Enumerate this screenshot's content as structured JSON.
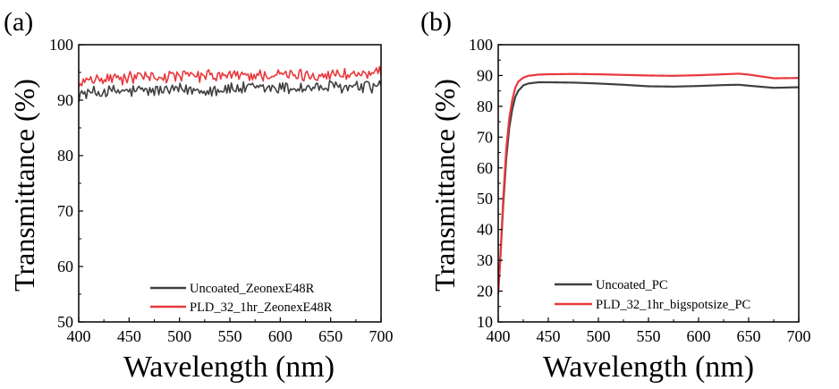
{
  "chart_data": [
    {
      "panel_label": "(a)",
      "type": "line",
      "xlabel": "Wavelength (nm)",
      "ylabel": "Transmittance (%)",
      "xlim": [
        400,
        700
      ],
      "ylim": [
        50,
        100
      ],
      "xticks": [
        400,
        450,
        500,
        550,
        600,
        650,
        700
      ],
      "yticks": [
        50,
        60,
        70,
        80,
        90,
        100
      ],
      "legend_position": "bottom-right",
      "series": [
        {
          "name": "Uncoated_ZeonexE48R",
          "color": "#404040",
          "noise": 1.1,
          "x": [
            400,
            425,
            450,
            475,
            500,
            525,
            550,
            575,
            600,
            625,
            650,
            675,
            700
          ],
          "y": [
            91.0,
            91.5,
            91.6,
            91.7,
            91.8,
            91.9,
            92.0,
            92.1,
            92.2,
            92.2,
            92.3,
            92.3,
            92.5
          ]
        },
        {
          "name": "PLD_32_1hr_ZeonexE48R",
          "color": "#e8383d",
          "noise": 1.0,
          "x": [
            400,
            425,
            450,
            475,
            500,
            525,
            550,
            575,
            600,
            625,
            650,
            675,
            700
          ],
          "y": [
            93.0,
            93.8,
            94.0,
            94.2,
            94.3,
            94.3,
            94.4,
            94.5,
            94.5,
            94.5,
            94.6,
            94.7,
            94.8
          ]
        }
      ]
    },
    {
      "panel_label": "(b)",
      "type": "line",
      "xlabel": "Wavelength (nm)",
      "ylabel": "Transmittance (%)",
      "xlim": [
        400,
        700
      ],
      "ylim": [
        10,
        100
      ],
      "xticks": [
        400,
        450,
        500,
        550,
        600,
        650,
        700
      ],
      "yticks": [
        10,
        20,
        30,
        40,
        50,
        60,
        70,
        80,
        90,
        100
      ],
      "legend_position": "bottom-right",
      "series": [
        {
          "name": "Uncoated_PC",
          "color": "#404040",
          "noise": 0,
          "x": [
            400,
            402,
            405,
            408,
            411,
            414,
            417,
            420,
            425,
            430,
            440,
            450,
            475,
            500,
            525,
            550,
            575,
            600,
            625,
            640,
            650,
            675,
            700
          ],
          "y": [
            21,
            30,
            48,
            63,
            73,
            79,
            83,
            85,
            86.8,
            87.4,
            87.8,
            87.8,
            87.7,
            87.4,
            87.0,
            86.5,
            86.4,
            86.6,
            86.9,
            87.0,
            86.7,
            86.0,
            86.2
          ]
        },
        {
          "name": "PLD_32_1hr_bigspotsize_PC",
          "color": "#e8383d",
          "noise": 0,
          "x": [
            400,
            402,
            405,
            408,
            411,
            414,
            417,
            420,
            425,
            430,
            440,
            450,
            475,
            500,
            525,
            550,
            575,
            600,
            625,
            640,
            650,
            675,
            700
          ],
          "y": [
            19,
            30,
            50,
            66,
            76,
            82,
            86,
            88,
            89.3,
            89.9,
            90.3,
            90.4,
            90.5,
            90.4,
            90.2,
            90.0,
            89.9,
            90.1,
            90.4,
            90.6,
            90.3,
            89.1,
            89.2
          ]
        }
      ]
    }
  ]
}
